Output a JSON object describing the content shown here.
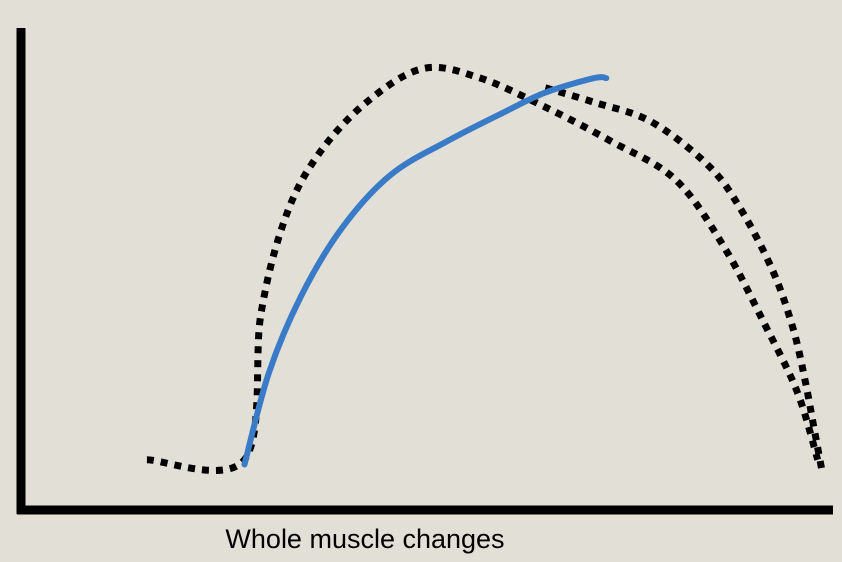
{
  "chart_data": {
    "type": "line",
    "title": "",
    "xlabel": "Whole muscle changes",
    "ylabel": "",
    "axes": {
      "ticks": false,
      "grid": false,
      "legend": "none"
    },
    "colors": {
      "background": "#e2dfd6",
      "axis": "#000000",
      "solid_series": "#3a7bc8",
      "dotted_series": "#000000"
    },
    "xlim": [
      0,
      100
    ],
    "ylim": [
      0,
      100
    ],
    "series": [
      {
        "style": "dotted",
        "color": "#000000",
        "points": [
          [
            15,
            10
          ],
          [
            27,
            10
          ],
          [
            29,
            40
          ],
          [
            32,
            60
          ],
          [
            36,
            73
          ],
          [
            42,
            84
          ],
          [
            49,
            91
          ],
          [
            56,
            89
          ],
          [
            64,
            83
          ],
          [
            72,
            76
          ],
          [
            80,
            68
          ],
          [
            86,
            54
          ],
          [
            91,
            38
          ],
          [
            95,
            24
          ],
          [
            97.5,
            10
          ]
        ]
      },
      {
        "style": "dotted",
        "color": "#000000",
        "points": [
          [
            64,
            87
          ],
          [
            70,
            84
          ],
          [
            77,
            80
          ],
          [
            84,
            71
          ],
          [
            88,
            62
          ],
          [
            92,
            49
          ],
          [
            94.5,
            37
          ],
          [
            96,
            26
          ],
          [
            97,
            17
          ],
          [
            98,
            8
          ]
        ]
      },
      {
        "style": "solid",
        "color": "#3a7bc8",
        "points": [
          [
            27,
            9
          ],
          [
            30,
            28
          ],
          [
            34,
            44
          ],
          [
            39,
            58
          ],
          [
            45,
            69
          ],
          [
            52,
            76
          ],
          [
            59,
            82
          ],
          [
            64,
            86
          ],
          [
            70,
            89
          ],
          [
            71.5,
            89
          ]
        ]
      }
    ]
  }
}
